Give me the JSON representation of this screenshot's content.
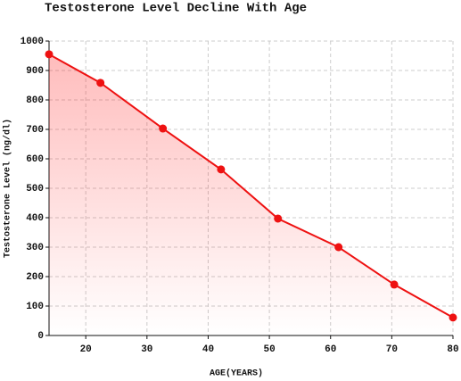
{
  "chart_data": {
    "type": "line",
    "title": "Testosterone Level Decline With Age",
    "x_label": "AGE(YEARS)",
    "y_label": "Testosterone Level (ng/dl)",
    "x": [
      14,
      22.4,
      32.6,
      42.1,
      51.4,
      61.3,
      70.4,
      80
    ],
    "series": [
      {
        "name": "Testosterone Level",
        "color": "#ee1111",
        "values": [
          955,
          858,
          703,
          564,
          397,
          300,
          173,
          61
        ]
      }
    ],
    "xlim": [
      14,
      80
    ],
    "xticks": [
      20,
      30,
      40,
      50,
      60,
      70,
      80
    ],
    "ylim": [
      0,
      1000
    ],
    "yticks": [
      0,
      100,
      200,
      300,
      400,
      500,
      600,
      700,
      800,
      900,
      1000
    ],
    "grid": true,
    "fill": true
  }
}
